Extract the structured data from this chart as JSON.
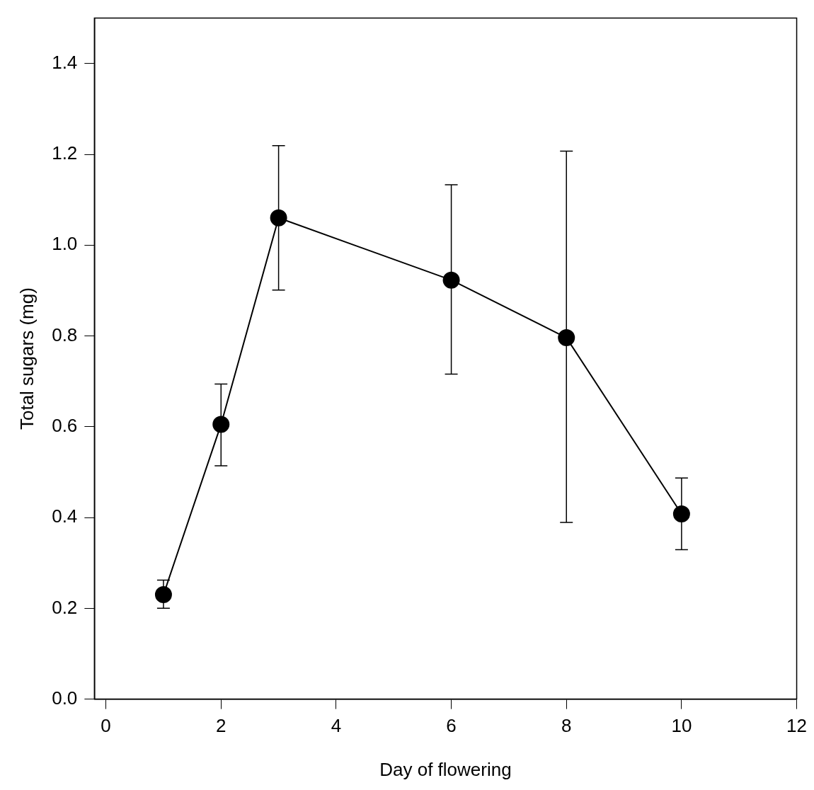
{
  "chart_data": {
    "type": "line",
    "xlabel": "Day of flowering",
    "ylabel": "Total sugars (mg)",
    "x": [
      1,
      2,
      3,
      6,
      8,
      10
    ],
    "series": [
      {
        "color": "#000000",
        "values": [
          0.23,
          0.605,
          1.06,
          0.923,
          0.796,
          0.408
        ],
        "errors": [
          [
            0.2,
            0.262
          ],
          [
            0.514,
            0.694
          ],
          [
            0.901,
            1.219
          ],
          [
            0.716,
            1.133
          ],
          [
            0.389,
            1.207
          ],
          [
            0.329,
            0.487
          ]
        ]
      }
    ],
    "xlim": [
      -0.2,
      12
    ],
    "ylim": [
      0,
      1.5
    ],
    "xticks": [
      0,
      2,
      4,
      6,
      8,
      10,
      12
    ],
    "yticks": [
      {
        "value": 0,
        "label": "0.0"
      },
      0.2,
      0.4,
      0.6,
      0.8,
      {
        "value": 1,
        "label": "1.0"
      },
      1.2,
      1.4
    ],
    "grid": false,
    "legend": false,
    "marker": "circle",
    "line_style": "solid"
  }
}
